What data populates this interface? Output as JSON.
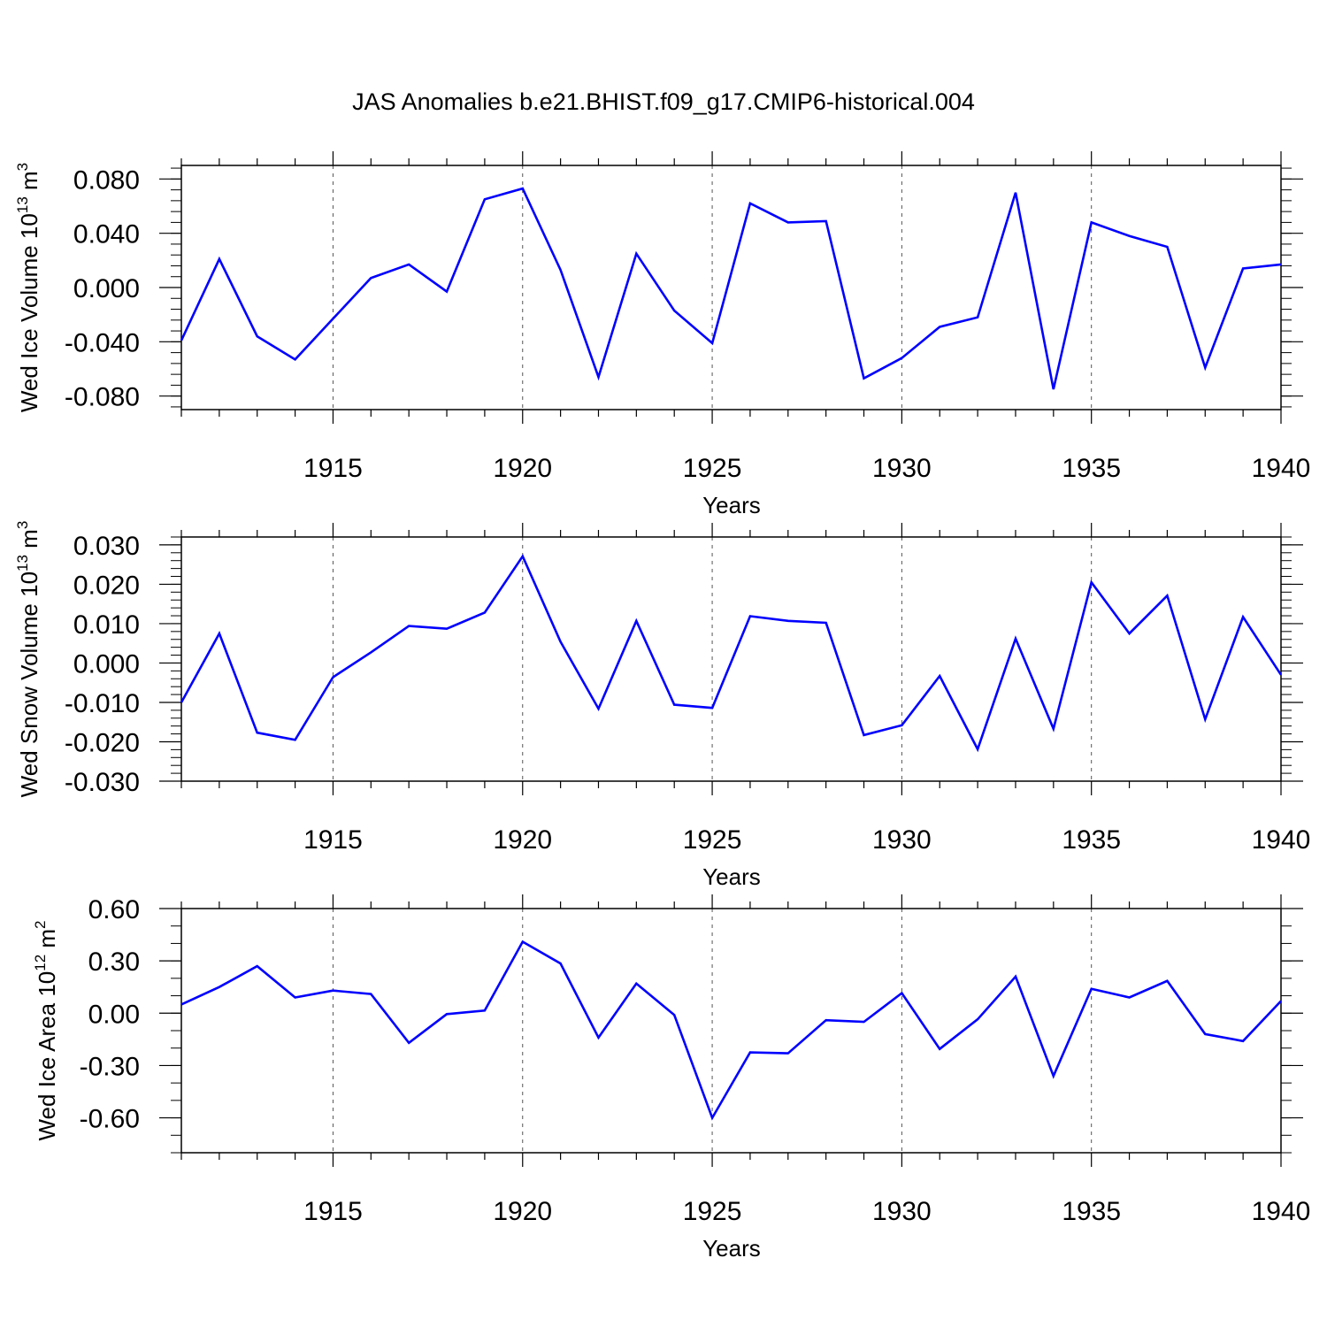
{
  "title": "JAS Anomalies b.e21.BHIST.f09_g17.CMIP6-historical.004",
  "colors": {
    "line": "#0000ff",
    "axis": "#000000",
    "grid": "#555555",
    "background": "#ffffff"
  },
  "chart_data": [
    {
      "type": "line",
      "name": "ice-volume",
      "ylabel_main": "Wed Ice Volume 10",
      "ylabel_exp": "13",
      "ylabel_unit": " m",
      "ylabel_unit_exp": "3",
      "xlabel": "Years",
      "xlim": [
        1911,
        1940
      ],
      "ylim": [
        -0.09,
        0.09
      ],
      "yticks": [
        -0.08,
        -0.04,
        0.0,
        0.04,
        0.08
      ],
      "ytick_labels": [
        "-0.080",
        "-0.040",
        "0.000",
        "0.040",
        "0.080"
      ],
      "yminor_step": 0.008,
      "xticks": [
        1915,
        1920,
        1925,
        1930,
        1935,
        1940
      ],
      "xtick_labels": [
        "1915",
        "1920",
        "1925",
        "1930",
        "1935",
        "1940"
      ],
      "grid": "vertical-dashed",
      "series": [
        {
          "name": "Wed Ice Volume",
          "x": [
            1911,
            1912,
            1913,
            1914,
            1915,
            1916,
            1917,
            1918,
            1919,
            1920,
            1921,
            1922,
            1923,
            1924,
            1925,
            1926,
            1927,
            1928,
            1929,
            1930,
            1931,
            1932,
            1933,
            1934,
            1935,
            1936,
            1937,
            1938,
            1939,
            1940
          ],
          "values": [
            -0.039,
            0.021,
            -0.036,
            -0.053,
            -0.023,
            0.007,
            0.017,
            -0.003,
            0.065,
            0.073,
            0.013,
            -0.066,
            0.025,
            -0.017,
            -0.041,
            0.062,
            0.048,
            0.049,
            -0.067,
            -0.052,
            -0.029,
            -0.022,
            0.07,
            -0.075,
            0.048,
            0.038,
            0.03,
            -0.059,
            0.014,
            0.017
          ]
        }
      ]
    },
    {
      "type": "line",
      "name": "snow-volume",
      "ylabel_main": "Wed Snow Volume 10",
      "ylabel_exp": "13",
      "ylabel_unit": " m",
      "ylabel_unit_exp": "3",
      "xlabel": "Years",
      "xlim": [
        1911,
        1940
      ],
      "ylim": [
        -0.03,
        0.032
      ],
      "yticks": [
        -0.03,
        -0.02,
        -0.01,
        0.0,
        0.01,
        0.02,
        0.03
      ],
      "ytick_labels": [
        "-0.030",
        "-0.020",
        "-0.010",
        "0.000",
        "0.010",
        "0.020",
        "0.030"
      ],
      "yminor_step": 0.002,
      "xticks": [
        1915,
        1920,
        1925,
        1930,
        1935,
        1940
      ],
      "xtick_labels": [
        "1915",
        "1920",
        "1925",
        "1930",
        "1935",
        "1940"
      ],
      "grid": "vertical-dashed",
      "series": [
        {
          "name": "Wed Snow Volume",
          "x": [
            1911,
            1912,
            1913,
            1914,
            1915,
            1916,
            1917,
            1918,
            1919,
            1920,
            1921,
            1922,
            1923,
            1924,
            1925,
            1926,
            1927,
            1928,
            1929,
            1930,
            1931,
            1932,
            1933,
            1934,
            1935,
            1936,
            1937,
            1938,
            1939,
            1940
          ],
          "values": [
            -0.01,
            0.0075,
            -0.0177,
            -0.0195,
            -0.0036,
            0.0027,
            0.0094,
            0.0087,
            0.0128,
            0.0271,
            0.0054,
            -0.0116,
            0.0107,
            -0.0106,
            -0.0114,
            0.0119,
            0.0107,
            0.0102,
            -0.0183,
            -0.0158,
            -0.0033,
            -0.0219,
            0.0062,
            -0.0167,
            0.0205,
            0.0075,
            0.0171,
            -0.0143,
            0.0117,
            -0.003
          ]
        }
      ]
    },
    {
      "type": "line",
      "name": "ice-area",
      "ylabel_main": "Wed Ice Area 10",
      "ylabel_exp": "12",
      "ylabel_unit": " m",
      "ylabel_unit_exp": "2",
      "xlabel": "Years",
      "xlim": [
        1911,
        1940
      ],
      "ylim": [
        -0.8,
        0.6
      ],
      "yticks": [
        -0.6,
        -0.3,
        0.0,
        0.3,
        0.6
      ],
      "ytick_labels": [
        "-0.60",
        "-0.30",
        "0.00",
        "0.30",
        "0.60"
      ],
      "yminor_step": 0.1,
      "xticks": [
        1915,
        1920,
        1925,
        1930,
        1935,
        1940
      ],
      "xtick_labels": [
        "1915",
        "1920",
        "1925",
        "1930",
        "1935",
        "1940"
      ],
      "grid": "vertical-dashed",
      "series": [
        {
          "name": "Wed Ice Area",
          "x": [
            1911,
            1912,
            1913,
            1914,
            1915,
            1916,
            1917,
            1918,
            1919,
            1920,
            1921,
            1922,
            1923,
            1924,
            1925,
            1926,
            1927,
            1928,
            1929,
            1930,
            1931,
            1932,
            1933,
            1934,
            1935,
            1936,
            1937,
            1938,
            1939,
            1940
          ],
          "values": [
            0.05,
            0.15,
            0.27,
            0.09,
            0.13,
            0.11,
            -0.17,
            -0.005,
            0.015,
            0.41,
            0.285,
            -0.14,
            0.17,
            -0.01,
            -0.6,
            -0.225,
            -0.23,
            -0.04,
            -0.05,
            0.115,
            -0.205,
            -0.035,
            0.21,
            -0.36,
            0.14,
            0.09,
            0.185,
            -0.12,
            -0.16,
            0.07
          ]
        }
      ]
    }
  ]
}
